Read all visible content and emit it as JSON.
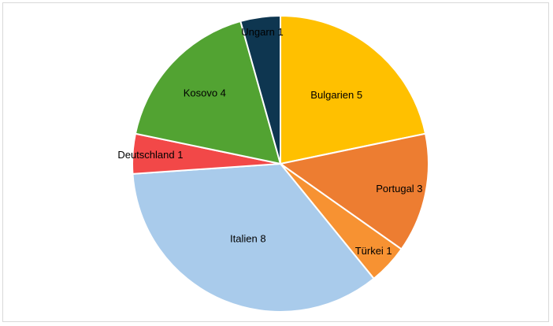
{
  "chart_data": {
    "type": "pie",
    "title": "",
    "slices": [
      {
        "name": "Bulgarien",
        "value": 5,
        "label": "Bulgarien 5",
        "color": "#FFC000"
      },
      {
        "name": "Portugal",
        "value": 3,
        "label": "Portugal 3",
        "color": "#ED7D31"
      },
      {
        "name": "Türkei",
        "value": 1,
        "label": "Türkei 1",
        "color": "#F79232"
      },
      {
        "name": "Italien",
        "value": 8,
        "label": "Italien 8",
        "color": "#A9CBEB"
      },
      {
        "name": "Deutschland",
        "value": 1,
        "label": "Deutschland 1",
        "color": "#F24848"
      },
      {
        "name": "Kosovo",
        "value": 4,
        "label": "Kosovo 4",
        "color": "#52A332"
      },
      {
        "name": "Ungarn",
        "value": 1,
        "label": "Ungarn 1",
        "color": "#0E3650"
      }
    ],
    "legend": "none",
    "start_angle": "12 o'clock",
    "direction": "clockwise"
  }
}
